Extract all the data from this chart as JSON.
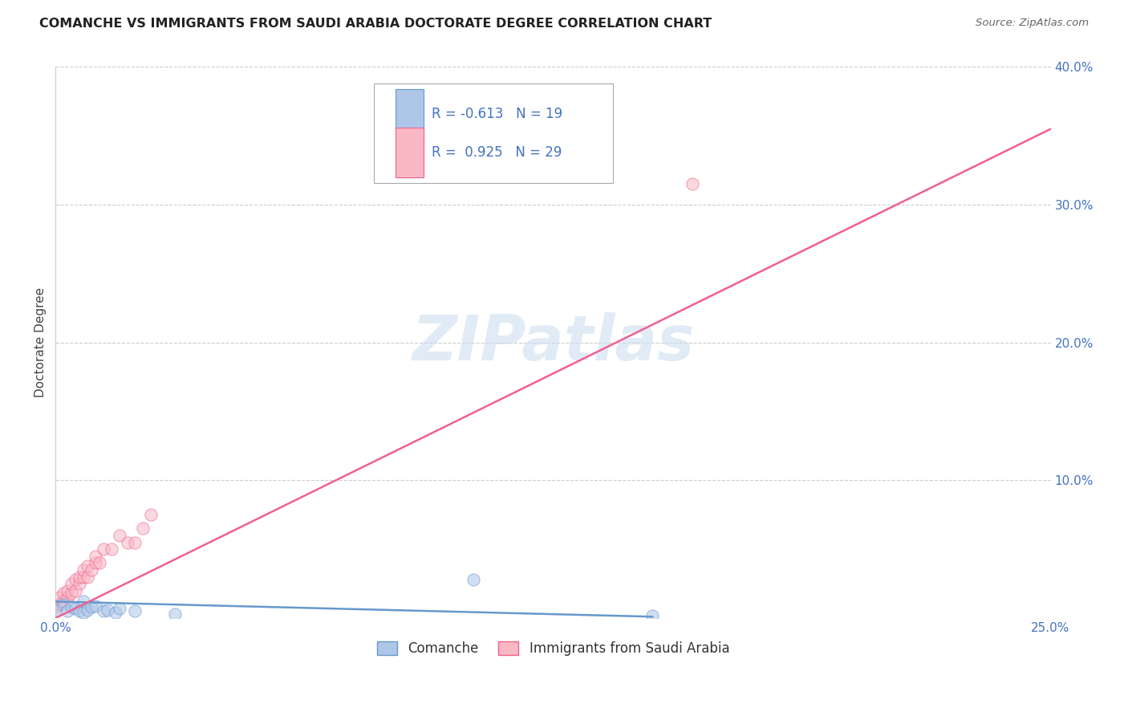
{
  "title": "COMANCHE VS IMMIGRANTS FROM SAUDI ARABIA DOCTORATE DEGREE CORRELATION CHART",
  "source": "Source: ZipAtlas.com",
  "ylabel": "Doctorate Degree",
  "watermark": "ZIPatlas",
  "xlim": [
    0.0,
    0.25
  ],
  "ylim": [
    0.0,
    0.4
  ],
  "x_tick_positions": [
    0.0,
    0.05,
    0.1,
    0.15,
    0.2,
    0.25
  ],
  "x_tick_labels": [
    "0.0%",
    "",
    "",
    "",
    "",
    "25.0%"
  ],
  "y_tick_positions": [
    0.1,
    0.2,
    0.3,
    0.4
  ],
  "y_tick_labels": [
    "10.0%",
    "20.0%",
    "30.0%",
    "40.0%"
  ],
  "legend_comanche_label": "Comanche",
  "legend_saudi_label": "Immigrants from Saudi Arabia",
  "legend_comanche_R": "-0.613",
  "legend_comanche_N": "19",
  "legend_saudi_R": "0.925",
  "legend_saudi_N": "29",
  "comanche_color": "#aec6e8",
  "comanche_edge_color": "#6699cc",
  "saudi_color": "#f9b8c4",
  "saudi_edge_color": "#f06090",
  "comanche_line_color": "#6699cc",
  "saudi_line_color": "#f06090",
  "grid_color": "#cccccc",
  "background_color": "#ffffff",
  "scatter_alpha": 0.55,
  "scatter_size": 120,
  "comanche_scatter_x": [
    0.0,
    0.002,
    0.003,
    0.004,
    0.005,
    0.006,
    0.007,
    0.007,
    0.008,
    0.009,
    0.01,
    0.012,
    0.013,
    0.015,
    0.016,
    0.02,
    0.03,
    0.105,
    0.15
  ],
  "comanche_scatter_y": [
    0.006,
    0.01,
    0.005,
    0.008,
    0.007,
    0.005,
    0.004,
    0.012,
    0.006,
    0.008,
    0.009,
    0.005,
    0.006,
    0.004,
    0.007,
    0.005,
    0.003,
    0.028,
    0.002
  ],
  "saudi_scatter_x": [
    0.0,
    0.001,
    0.001,
    0.002,
    0.002,
    0.003,
    0.003,
    0.004,
    0.004,
    0.005,
    0.005,
    0.006,
    0.006,
    0.007,
    0.007,
    0.008,
    0.008,
    0.009,
    0.01,
    0.01,
    0.011,
    0.012,
    0.014,
    0.016,
    0.018,
    0.02,
    0.022,
    0.024,
    0.16
  ],
  "saudi_scatter_y": [
    0.008,
    0.01,
    0.015,
    0.012,
    0.018,
    0.015,
    0.02,
    0.018,
    0.025,
    0.02,
    0.028,
    0.025,
    0.03,
    0.03,
    0.035,
    0.03,
    0.038,
    0.035,
    0.04,
    0.045,
    0.04,
    0.05,
    0.05,
    0.06,
    0.055,
    0.055,
    0.065,
    0.075,
    0.315
  ],
  "saudi_line_x": [
    0.0,
    0.25
  ],
  "saudi_line_y": [
    0.0,
    0.355
  ],
  "comanche_line_x": [
    0.0,
    0.15
  ],
  "comanche_line_y": [
    0.012,
    0.001
  ]
}
